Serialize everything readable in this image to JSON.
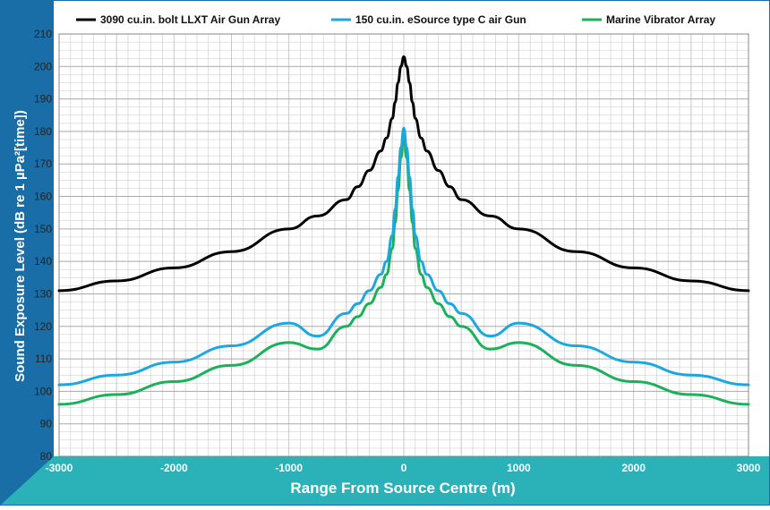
{
  "chart_data": {
    "type": "line",
    "title": "",
    "xlabel": "Range From Source Centre (m)",
    "ylabel": "Sound Exposure Level (dB re 1 µPa²[time])",
    "xlim": [
      -3000,
      3000
    ],
    "ylim": [
      80,
      210
    ],
    "x_ticks": [
      -3000,
      -2000,
      -1000,
      0,
      1000,
      2000,
      3000
    ],
    "y_ticks": [
      80,
      90,
      100,
      110,
      120,
      130,
      140,
      150,
      160,
      170,
      180,
      190,
      200,
      210
    ],
    "grid": true,
    "legend_position": "top",
    "series": [
      {
        "name": "3090 cu.in. bolt LLXT Air Gun Array",
        "color": "#000000",
        "x": [
          0,
          25,
          50,
          75,
          100,
          150,
          200,
          300,
          400,
          500,
          750,
          1000,
          1500,
          2000,
          2500,
          3000
        ],
        "y": [
          203,
          200,
          195,
          189,
          184,
          178,
          174,
          168,
          163,
          159,
          154,
          150,
          143,
          138,
          134,
          131
        ]
      },
      {
        "name": "150 cu.in. eSource type C air Gun",
        "color": "#1ba8e0",
        "x": [
          0,
          25,
          50,
          75,
          100,
          150,
          200,
          300,
          400,
          500,
          750,
          1000,
          1500,
          2000,
          2500,
          3000
        ],
        "y": [
          181,
          175,
          166,
          156,
          148,
          140,
          136,
          131,
          127,
          124,
          117,
          121,
          114,
          109,
          105,
          102
        ]
      },
      {
        "name": "Marine Vibrator Array",
        "color": "#1ab15a",
        "x": [
          0,
          25,
          50,
          75,
          100,
          150,
          200,
          300,
          400,
          500,
          750,
          1000,
          1500,
          2000,
          2500,
          3000
        ],
        "y": [
          179,
          172,
          162,
          152,
          144,
          136,
          132,
          127,
          123,
          120,
          113,
          115,
          108,
          103,
          99,
          96
        ]
      }
    ]
  },
  "colors": {
    "accent": "#1a6ea8",
    "band": "#2ab2b8",
    "grid": "#c8c8c8"
  }
}
